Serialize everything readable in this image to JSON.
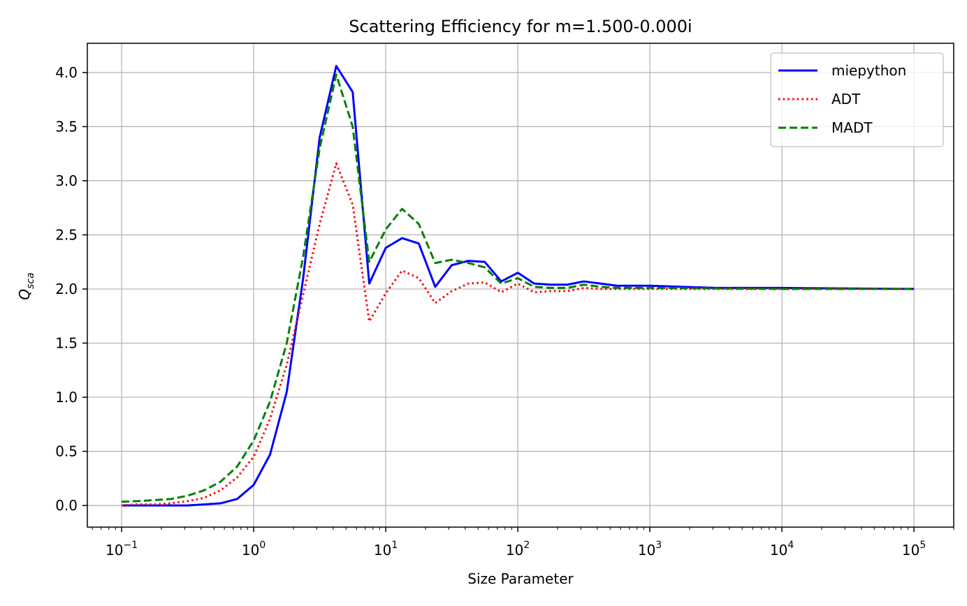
{
  "chart_data": {
    "type": "line",
    "title": "Scattering Efficiency for m=1.500-0.000i",
    "xlabel": "Size Parameter",
    "ylabel": {
      "main": "Q",
      "sub": "sca"
    },
    "xscale": "log",
    "xlim": [
      0.055,
      200000
    ],
    "ylim": [
      -0.2,
      4.27
    ],
    "grid": true,
    "legend_position": "top-right",
    "x_ticks": [
      {
        "value": 0.1,
        "base": "10",
        "exp": "−1"
      },
      {
        "value": 1,
        "base": "10",
        "exp": "0"
      },
      {
        "value": 10,
        "base": "10",
        "exp": "1"
      },
      {
        "value": 100,
        "base": "10",
        "exp": "2"
      },
      {
        "value": 1000,
        "base": "10",
        "exp": "3"
      },
      {
        "value": 10000,
        "base": "10",
        "exp": "4"
      },
      {
        "value": 100000,
        "base": "10",
        "exp": "5"
      }
    ],
    "y_ticks": [
      {
        "value": 0.0,
        "label": "0.0"
      },
      {
        "value": 0.5,
        "label": "0.5"
      },
      {
        "value": 1.0,
        "label": "1.0"
      },
      {
        "value": 1.5,
        "label": "1.5"
      },
      {
        "value": 2.0,
        "label": "2.0"
      },
      {
        "value": 2.5,
        "label": "2.5"
      },
      {
        "value": 3.0,
        "label": "3.0"
      },
      {
        "value": 3.5,
        "label": "3.5"
      },
      {
        "value": 4.0,
        "label": "4.0"
      }
    ],
    "series": [
      {
        "name": "miepython",
        "color": "#0000ff",
        "style": "solid",
        "points": [
          [
            0.1,
            0.0
          ],
          [
            0.133,
            0.0
          ],
          [
            0.178,
            0.0
          ],
          [
            0.237,
            0.0
          ],
          [
            0.316,
            0.0
          ],
          [
            0.422,
            0.01
          ],
          [
            0.562,
            0.02
          ],
          [
            0.75,
            0.06
          ],
          [
            1.0,
            0.19
          ],
          [
            1.33,
            0.47
          ],
          [
            1.78,
            1.05
          ],
          [
            2.37,
            2.1
          ],
          [
            3.16,
            3.4
          ],
          [
            4.22,
            4.06
          ],
          [
            5.62,
            3.82
          ],
          [
            7.5,
            2.05
          ],
          [
            10.0,
            2.38
          ],
          [
            13.3,
            2.47
          ],
          [
            17.8,
            2.42
          ],
          [
            23.7,
            2.02
          ],
          [
            31.6,
            2.22
          ],
          [
            42.2,
            2.26
          ],
          [
            56.2,
            2.25
          ],
          [
            75.0,
            2.07
          ],
          [
            100,
            2.15
          ],
          [
            133,
            2.05
          ],
          [
            178,
            2.04
          ],
          [
            237,
            2.04
          ],
          [
            316,
            2.07
          ],
          [
            422,
            2.05
          ],
          [
            562,
            2.03
          ],
          [
            1000,
            2.03
          ],
          [
            1778,
            2.02
          ],
          [
            3162,
            2.01
          ],
          [
            10000,
            2.01
          ],
          [
            100000,
            2.0
          ]
        ]
      },
      {
        "name": "ADT",
        "color": "#ff0000",
        "style": "dotted",
        "points": [
          [
            0.1,
            0.0
          ],
          [
            0.133,
            0.01
          ],
          [
            0.178,
            0.01
          ],
          [
            0.237,
            0.02
          ],
          [
            0.316,
            0.04
          ],
          [
            0.422,
            0.07
          ],
          [
            0.562,
            0.14
          ],
          [
            0.75,
            0.26
          ],
          [
            1.0,
            0.45
          ],
          [
            1.33,
            0.8
          ],
          [
            1.78,
            1.3
          ],
          [
            2.37,
            1.95
          ],
          [
            3.16,
            2.6
          ],
          [
            4.22,
            3.16
          ],
          [
            5.62,
            2.78
          ],
          [
            7.5,
            1.7
          ],
          [
            10.0,
            1.96
          ],
          [
            13.3,
            2.17
          ],
          [
            17.8,
            2.1
          ],
          [
            23.7,
            1.87
          ],
          [
            31.6,
            1.98
          ],
          [
            42.2,
            2.05
          ],
          [
            56.2,
            2.06
          ],
          [
            75.0,
            1.97
          ],
          [
            100,
            2.05
          ],
          [
            133,
            1.97
          ],
          [
            178,
            1.98
          ],
          [
            237,
            1.98
          ],
          [
            316,
            2.01
          ],
          [
            422,
            2.0
          ],
          [
            562,
            2.0
          ],
          [
            1000,
            2.0
          ],
          [
            10000,
            2.0
          ],
          [
            100000,
            2.0
          ]
        ]
      },
      {
        "name": "MADT",
        "color": "#008000",
        "style": "dashed",
        "points": [
          [
            0.1,
            0.035
          ],
          [
            0.133,
            0.04
          ],
          [
            0.178,
            0.05
          ],
          [
            0.237,
            0.06
          ],
          [
            0.316,
            0.09
          ],
          [
            0.422,
            0.14
          ],
          [
            0.562,
            0.22
          ],
          [
            0.75,
            0.36
          ],
          [
            1.0,
            0.6
          ],
          [
            1.33,
            0.96
          ],
          [
            1.78,
            1.5
          ],
          [
            2.37,
            2.3
          ],
          [
            3.16,
            3.3
          ],
          [
            4.22,
            3.98
          ],
          [
            5.62,
            3.5
          ],
          [
            7.5,
            2.25
          ],
          [
            10.0,
            2.55
          ],
          [
            13.3,
            2.74
          ],
          [
            17.8,
            2.6
          ],
          [
            23.7,
            2.24
          ],
          [
            31.6,
            2.27
          ],
          [
            42.2,
            2.24
          ],
          [
            56.2,
            2.2
          ],
          [
            75.0,
            2.05
          ],
          [
            100,
            2.1
          ],
          [
            133,
            2.02
          ],
          [
            178,
            2.01
          ],
          [
            237,
            2.01
          ],
          [
            316,
            2.04
          ],
          [
            422,
            2.02
          ],
          [
            562,
            2.01
          ],
          [
            1000,
            2.01
          ],
          [
            10000,
            2.0
          ],
          [
            100000,
            2.0
          ]
        ]
      }
    ]
  }
}
